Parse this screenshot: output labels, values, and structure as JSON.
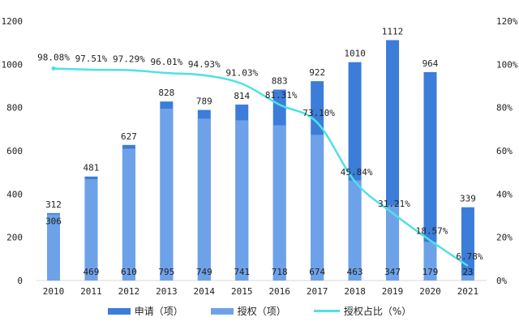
{
  "chart_data": {
    "type": "bar",
    "categories": [
      "2010",
      "2011",
      "2012",
      "2013",
      "2014",
      "2015",
      "2016",
      "2017",
      "2018",
      "2019",
      "2020",
      "2021"
    ],
    "series": [
      {
        "name": "申请（项）",
        "type": "bar",
        "color": "#3b7dd8",
        "values": [
          312,
          481,
          627,
          828,
          789,
          814,
          883,
          922,
          1010,
          1112,
          964,
          339
        ]
      },
      {
        "name": "授权（项）",
        "type": "bar",
        "color": "#6ea2e8",
        "values": [
          306,
          469,
          610,
          795,
          749,
          741,
          718,
          674,
          463,
          347,
          179,
          23
        ]
      },
      {
        "name": "授权占比（%）",
        "type": "line",
        "axis": "right",
        "color": "#4fe0e6",
        "values": [
          98.08,
          97.51,
          97.29,
          96.01,
          94.93,
          91.03,
          81.31,
          73.1,
          45.84,
          31.21,
          18.57,
          6.78
        ],
        "labels": [
          "98.08%",
          "97.51%",
          "97.29%",
          "96.01%",
          "94.93%",
          "91.03%",
          "81.31%",
          "73.10%",
          "45.84%",
          "31.21%",
          "18.57%",
          "6.78%"
        ]
      }
    ],
    "ylim": [
      0,
      1200
    ],
    "yticks": [
      "0",
      "200",
      "400",
      "600",
      "800",
      "1000",
      "1200"
    ],
    "y2lim": [
      0,
      120
    ],
    "y2ticks": [
      "0%",
      "20%",
      "40%",
      "60%",
      "80%",
      "100%",
      "120%"
    ],
    "legend": "bottom",
    "grid": false
  }
}
